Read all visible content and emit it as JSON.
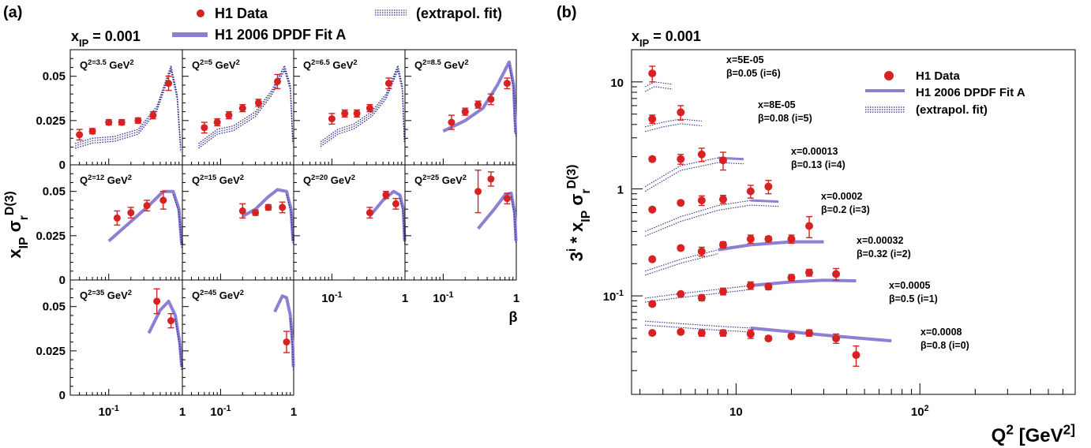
{
  "chart_data": [
    {
      "type": "scatter",
      "panel_label": "(a)",
      "subtitle": "x_IP = 0.001",
      "ylabel": "x_IP σ_r^D(3)",
      "xlabel": "β",
      "x_scale": "log",
      "xlim": [
        0.03,
        1
      ],
      "ylim": [
        0,
        0.065
      ],
      "y_ticks": [
        "0",
        "0.025",
        "0.05"
      ],
      "x_ticks": [
        "10^-1",
        "1"
      ],
      "legend": [
        {
          "name": "H1 Data",
          "kind": "points",
          "color": "#d62222"
        },
        {
          "name": "H1 2006 DPDF Fit A",
          "kind": "band",
          "color": "#8c7fd4"
        },
        {
          "name": "(extrapol. fit)",
          "kind": "dotted",
          "color": "#2a2f8c"
        }
      ],
      "subplots": [
        {
          "label": "Q^2=3.5 GeV^2",
          "q2": "3.5",
          "points": [
            [
              0.04,
              0.017,
              0.003
            ],
            [
              0.06,
              0.019,
              0.0015
            ],
            [
              0.1,
              0.024,
              0.0015
            ],
            [
              0.15,
              0.024,
              0.0015
            ],
            [
              0.25,
              0.025,
              0.0015
            ],
            [
              0.4,
              0.028,
              0.002
            ],
            [
              0.65,
              0.046,
              0.004
            ]
          ],
          "fit": [
            [
              0.035,
              0.012
            ],
            [
              0.06,
              0.015
            ],
            [
              0.12,
              0.016
            ],
            [
              0.25,
              0.02
            ],
            [
              0.45,
              0.033
            ],
            [
              0.7,
              0.056
            ],
            [
              0.85,
              0.04
            ],
            [
              0.95,
              0.01
            ]
          ],
          "fit_extrapolated": true
        },
        {
          "label": "Q^2=5 GeV^2",
          "q2": "5",
          "points": [
            [
              0.06,
              0.021,
              0.003
            ],
            [
              0.09,
              0.024,
              0.002
            ],
            [
              0.13,
              0.028,
              0.002
            ],
            [
              0.2,
              0.032,
              0.002
            ],
            [
              0.33,
              0.035,
              0.002
            ],
            [
              0.6,
              0.047,
              0.004
            ]
          ],
          "fit": [
            [
              0.05,
              0.012
            ],
            [
              0.09,
              0.02
            ],
            [
              0.15,
              0.022
            ],
            [
              0.3,
              0.03
            ],
            [
              0.5,
              0.042
            ],
            [
              0.75,
              0.056
            ],
            [
              0.9,
              0.045
            ],
            [
              0.97,
              0.015
            ]
          ],
          "fit_extrapolated": true
        },
        {
          "label": "Q^2=6.5 GeV^2",
          "q2": "6.5",
          "points": [
            [
              0.1,
              0.026,
              0.003
            ],
            [
              0.15,
              0.029,
              0.002
            ],
            [
              0.22,
              0.029,
              0.002
            ],
            [
              0.33,
              0.032,
              0.002
            ],
            [
              0.6,
              0.046,
              0.003
            ]
          ],
          "fit": [
            [
              0.07,
              0.013
            ],
            [
              0.12,
              0.02
            ],
            [
              0.2,
              0.023
            ],
            [
              0.35,
              0.03
            ],
            [
              0.55,
              0.04
            ],
            [
              0.8,
              0.056
            ],
            [
              0.92,
              0.045
            ],
            [
              0.98,
              0.015
            ]
          ],
          "fit_extrapolated": true
        },
        {
          "label": "Q^2=8.5 GeV^2",
          "q2": "8.5",
          "points": [
            [
              0.13,
              0.024,
              0.004
            ],
            [
              0.2,
              0.03,
              0.002
            ],
            [
              0.3,
              0.034,
              0.002
            ],
            [
              0.45,
              0.037,
              0.003
            ],
            [
              0.75,
              0.046,
              0.003
            ]
          ],
          "fit": [
            [
              0.1,
              0.019
            ],
            [
              0.2,
              0.025
            ],
            [
              0.35,
              0.032
            ],
            [
              0.55,
              0.045
            ],
            [
              0.8,
              0.058
            ],
            [
              0.92,
              0.045
            ],
            [
              0.98,
              0.018
            ]
          ],
          "fit_extrapolated": false
        },
        {
          "label": "Q^2=12 GeV^2",
          "q2": "12",
          "points": [
            [
              0.13,
              0.035,
              0.004
            ],
            [
              0.2,
              0.038,
              0.003
            ],
            [
              0.33,
              0.042,
              0.003
            ],
            [
              0.55,
              0.045,
              0.005
            ]
          ],
          "fit": [
            [
              0.1,
              0.022
            ],
            [
              0.2,
              0.033
            ],
            [
              0.35,
              0.042
            ],
            [
              0.55,
              0.05
            ],
            [
              0.75,
              0.05
            ],
            [
              0.9,
              0.04
            ],
            [
              0.98,
              0.02
            ]
          ],
          "fit_extrapolated": false
        },
        {
          "label": "Q^2=15 GeV^2",
          "q2": "15",
          "points": [
            [
              0.2,
              0.039,
              0.004
            ],
            [
              0.3,
              0.038,
              0.0015
            ],
            [
              0.45,
              0.041,
              0.0015
            ],
            [
              0.7,
              0.041,
              0.003
            ]
          ],
          "fit": [
            [
              0.2,
              0.036
            ],
            [
              0.3,
              0.04
            ],
            [
              0.45,
              0.047
            ],
            [
              0.6,
              0.051
            ],
            [
              0.8,
              0.05
            ],
            [
              0.92,
              0.04
            ],
            [
              0.98,
              0.022
            ]
          ],
          "fit_extrapolated": false
        },
        {
          "label": "Q^2=20 GeV^2",
          "q2": "20",
          "points": [
            [
              0.33,
              0.038,
              0.003
            ],
            [
              0.55,
              0.048,
              0.002
            ],
            [
              0.75,
              0.043,
              0.003
            ]
          ],
          "fit": [
            [
              0.33,
              0.036
            ],
            [
              0.5,
              0.045
            ],
            [
              0.7,
              0.05
            ],
            [
              0.85,
              0.048
            ],
            [
              0.95,
              0.04
            ],
            [
              0.99,
              0.022
            ]
          ],
          "fit_extrapolated": false
        },
        {
          "label": "Q^2=25 GeV^2",
          "q2": "25",
          "points": [
            [
              0.3,
              0.05,
              0.012
            ],
            [
              0.45,
              0.057,
              0.004
            ],
            [
              0.75,
              0.046,
              0.003
            ]
          ],
          "fit": [
            [
              0.3,
              0.029
            ],
            [
              0.5,
              0.04
            ],
            [
              0.7,
              0.048
            ],
            [
              0.85,
              0.049
            ],
            [
              0.95,
              0.038
            ],
            [
              0.99,
              0.022
            ]
          ],
          "fit_extrapolated": false
        },
        {
          "label": "Q^2=35 GeV^2",
          "q2": "35",
          "points": [
            [
              0.45,
              0.053,
              0.007
            ],
            [
              0.7,
              0.042,
              0.004
            ]
          ],
          "fit": [
            [
              0.35,
              0.035
            ],
            [
              0.5,
              0.048
            ],
            [
              0.65,
              0.053
            ],
            [
              0.8,
              0.045
            ],
            [
              0.92,
              0.03
            ],
            [
              0.98,
              0.016
            ]
          ],
          "fit_extrapolated": false
        },
        {
          "label": "Q^2=45 GeV^2",
          "q2": "45",
          "points": [
            [
              0.8,
              0.03,
              0.006
            ]
          ],
          "fit": [
            [
              0.55,
              0.047
            ],
            [
              0.7,
              0.056
            ],
            [
              0.8,
              0.055
            ],
            [
              0.9,
              0.045
            ],
            [
              0.97,
              0.028
            ],
            [
              0.99,
              0.016
            ]
          ],
          "fit_extrapolated": false
        }
      ]
    },
    {
      "type": "scatter",
      "panel_label": "(b)",
      "subtitle": "x_IP = 0.001",
      "ylabel": "3^i * x_IP σ_r^D(3)",
      "xlabel": "Q^2 [GeV^2]",
      "x_scale": "log",
      "y_scale": "log",
      "xlim": [
        2.7,
        700
      ],
      "ylim": [
        0.012,
        20
      ],
      "x_ticks": [
        "10",
        "10^2"
      ],
      "y_ticks": [
        "10^-1",
        "1",
        "10"
      ],
      "legend": [
        {
          "name": "H1 Data",
          "kind": "points",
          "color": "#d62222"
        },
        {
          "name": "H1 2006 DPDF Fit A",
          "kind": "band",
          "color": "#8c7fd4"
        },
        {
          "name": "(extrapol. fit)",
          "kind": "dotted",
          "color": "#2a2f8c"
        }
      ],
      "series": [
        {
          "x_label": "x=5E-05",
          "beta_label": "β=0.05 (i=6)",
          "points": [
            [
              3.5,
              12.0,
              2.0
            ]
          ],
          "fit": [
            [
              3.2,
              9.0
            ],
            [
              3.6,
              10.0
            ],
            [
              4.5,
              9.5
            ]
          ],
          "extrapolated_fit": true
        },
        {
          "x_label": "x=8E-05",
          "beta_label": "β=0.08 (i=5)",
          "points": [
            [
              3.5,
              4.5,
              0.4
            ],
            [
              5,
              5.2,
              0.8
            ]
          ],
          "fit": [
            [
              3.2,
              3.8
            ],
            [
              4,
              4.2
            ],
            [
              5,
              4.5
            ],
            [
              6.5,
              4.3
            ]
          ],
          "extrapolated_fit": true
        },
        {
          "x_label": "x=0.00013",
          "beta_label": "β=0.13 (i=4)",
          "points": [
            [
              3.5,
              1.9,
              0.1
            ],
            [
              5,
              1.9,
              0.2
            ],
            [
              6.5,
              2.1,
              0.3
            ],
            [
              8.5,
              1.85,
              0.35
            ]
          ],
          "fit": [
            [
              3.2,
              1.05
            ],
            [
              5,
              1.65
            ],
            [
              8,
              1.95
            ],
            [
              11,
              1.9
            ]
          ],
          "extrapolated_fit": true
        },
        {
          "x_label": "x=0.0002",
          "beta_label": "β=0.2 (i=3)",
          "points": [
            [
              3.5,
              0.64,
              0.03
            ],
            [
              5,
              0.74,
              0.03
            ],
            [
              6.5,
              0.78,
              0.08
            ],
            [
              8.5,
              0.8,
              0.07
            ],
            [
              12,
              0.95,
              0.13
            ],
            [
              15,
              1.05,
              0.15
            ]
          ],
          "fit": [
            [
              3.2,
              0.4
            ],
            [
              5,
              0.55
            ],
            [
              8,
              0.7
            ],
            [
              12,
              0.78
            ],
            [
              17,
              0.76
            ]
          ],
          "extrapolated_fit": true
        },
        {
          "x_label": "x=0.00032",
          "beta_label": "β=0.32 (i=2)",
          "points": [
            [
              3.5,
              0.22,
              0.01
            ],
            [
              5,
              0.28,
              0.01
            ],
            [
              6.5,
              0.26,
              0.025
            ],
            [
              8.5,
              0.3,
              0.02
            ],
            [
              12,
              0.34,
              0.03
            ],
            [
              15,
              0.34,
              0.02
            ],
            [
              20,
              0.34,
              0.03
            ],
            [
              25,
              0.45,
              0.1
            ]
          ],
          "fit": [
            [
              3.2,
              0.17
            ],
            [
              5,
              0.22
            ],
            [
              8,
              0.27
            ],
            [
              12,
              0.3
            ],
            [
              20,
              0.32
            ],
            [
              30,
              0.32
            ]
          ],
          "extrapolated_fit": false
        },
        {
          "x_label": "x=0.0005",
          "beta_label": "β=0.5 (i=1)",
          "points": [
            [
              3.5,
              0.084,
              0.004
            ],
            [
              5,
              0.104,
              0.004
            ],
            [
              6.5,
              0.096,
              0.006
            ],
            [
              8.5,
              0.11,
              0.008
            ],
            [
              12,
              0.125,
              0.01
            ],
            [
              15,
              0.122,
              0.008
            ],
            [
              20,
              0.148,
              0.01
            ],
            [
              25,
              0.165,
              0.012
            ],
            [
              35,
              0.16,
              0.02
            ]
          ],
          "fit": [
            [
              3.2,
              0.095
            ],
            [
              5,
              0.105
            ],
            [
              8,
              0.115
            ],
            [
              12,
              0.125
            ],
            [
              20,
              0.135
            ],
            [
              30,
              0.14
            ],
            [
              45,
              0.138
            ]
          ],
          "extrapolated_fit": false
        },
        {
          "x_label": "x=0.0008",
          "beta_label": "β=0.8 (i=0)",
          "points": [
            [
              3.5,
              0.045,
              0.002
            ],
            [
              5,
              0.046,
              0.002
            ],
            [
              6.5,
              0.045,
              0.003
            ],
            [
              8.5,
              0.045,
              0.003
            ],
            [
              12,
              0.044,
              0.004
            ],
            [
              15,
              0.04,
              0.002
            ],
            [
              20,
              0.042,
              0.002
            ],
            [
              25,
              0.045,
              0.003
            ],
            [
              35,
              0.04,
              0.004
            ],
            [
              45,
              0.028,
              0.006
            ]
          ],
          "fit": [
            [
              3.2,
              0.058
            ],
            [
              5,
              0.055
            ],
            [
              8,
              0.052
            ],
            [
              12,
              0.05
            ],
            [
              20,
              0.046
            ],
            [
              35,
              0.042
            ],
            [
              70,
              0.038
            ]
          ],
          "extrapolated_fit": false
        }
      ]
    }
  ]
}
